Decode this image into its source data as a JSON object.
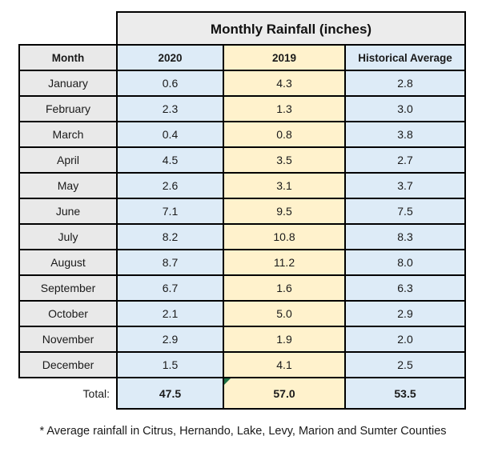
{
  "title": "Monthly Rainfall (inches)",
  "columns": {
    "month": "Month",
    "y2020": "2020",
    "y2019": "2019",
    "hist": "Historical Average"
  },
  "rows": [
    {
      "month": "January",
      "y2020": "0.6",
      "y2019": "4.3",
      "hist": "2.8"
    },
    {
      "month": "February",
      "y2020": "2.3",
      "y2019": "1.3",
      "hist": "3.0"
    },
    {
      "month": "March",
      "y2020": "0.4",
      "y2019": "0.8",
      "hist": "3.8"
    },
    {
      "month": "April",
      "y2020": "4.5",
      "y2019": "3.5",
      "hist": "2.7"
    },
    {
      "month": "May",
      "y2020": "2.6",
      "y2019": "3.1",
      "hist": "3.7"
    },
    {
      "month": "June",
      "y2020": "7.1",
      "y2019": "9.5",
      "hist": "7.5"
    },
    {
      "month": "July",
      "y2020": "8.2",
      "y2019": "10.8",
      "hist": "8.3"
    },
    {
      "month": "August",
      "y2020": "8.7",
      "y2019": "11.2",
      "hist": "8.0"
    },
    {
      "month": "September",
      "y2020": "6.7",
      "y2019": "1.6",
      "hist": "6.3"
    },
    {
      "month": "October",
      "y2020": "2.1",
      "y2019": "5.0",
      "hist": "2.9"
    },
    {
      "month": "November",
      "y2020": "2.9",
      "y2019": "1.9",
      "hist": "2.0"
    },
    {
      "month": "December",
      "y2020": "1.5",
      "y2019": "4.1",
      "hist": "2.5"
    }
  ],
  "total": {
    "label": "Total:",
    "y2020": "47.5",
    "y2019": "57.0",
    "hist": "53.5"
  },
  "footnote": "* Average rainfall in Citrus, Hernando, Lake, Levy, Marion and Sumter Counties",
  "icons": {
    "error_indicator": "excel-error-indicator-triangle"
  },
  "colors": {
    "header_gray": "#ECECEC",
    "month_gray": "#E9E9E9",
    "blue": "#DDEBF7",
    "yellow": "#FFF2CC",
    "border": "#000000",
    "error_indicator_green": "#1E7145",
    "background": "#FFFFFF"
  }
}
